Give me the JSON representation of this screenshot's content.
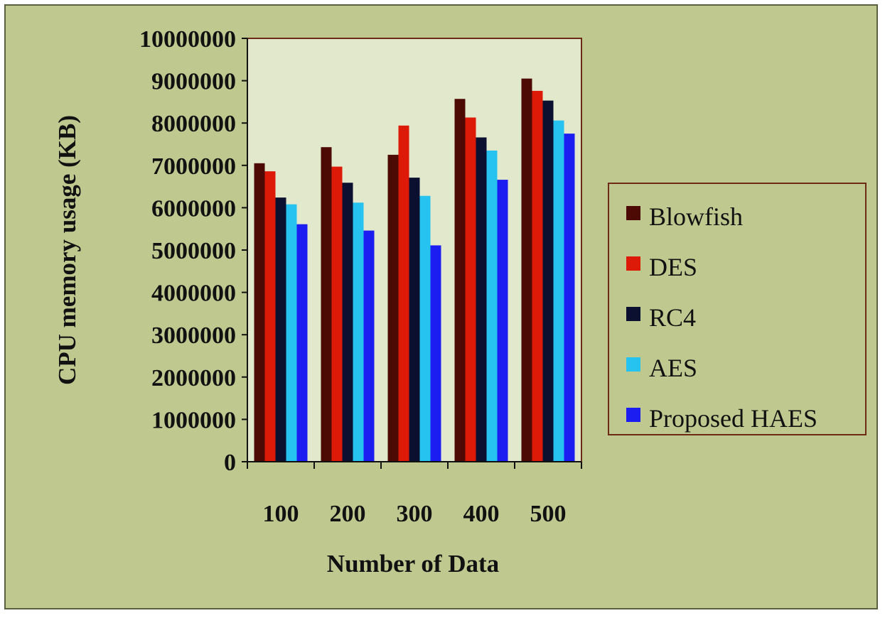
{
  "chart_data": {
    "type": "bar",
    "title": "",
    "xlabel": "Number of Data",
    "ylabel": "CPU memory usage (KB)",
    "categories": [
      "100",
      "200",
      "300",
      "400",
      "500"
    ],
    "ylim": [
      0,
      10000000
    ],
    "yticks": [
      "0",
      "1000000",
      "2000000",
      "3000000",
      "4000000",
      "5000000",
      "6000000",
      "7000000",
      "8000000",
      "9000000",
      "10000000"
    ],
    "grid": false,
    "legend_position": "right",
    "series": [
      {
        "name": "Blowfish",
        "color": "#4d0a05",
        "values": [
          7050000,
          7430000,
          7250000,
          8570000,
          9050000
        ]
      },
      {
        "name": "DES",
        "color": "#dd1a08",
        "values": [
          6860000,
          6970000,
          7940000,
          8130000,
          8760000
        ]
      },
      {
        "name": "RC4",
        "color": "#0b1030",
        "values": [
          6240000,
          6590000,
          6710000,
          7660000,
          8530000
        ]
      },
      {
        "name": "AES",
        "color": "#26c3f0",
        "values": [
          6080000,
          6120000,
          6280000,
          7350000,
          8060000
        ]
      },
      {
        "name": "Proposed HAES",
        "color": "#1c1df0",
        "values": [
          5610000,
          5460000,
          5110000,
          6660000,
          7750000
        ]
      }
    ],
    "colors": {
      "plot_background": "#e2e8cc",
      "outer_background": "#bfc98f",
      "plot_border": "#6b2b15"
    }
  }
}
